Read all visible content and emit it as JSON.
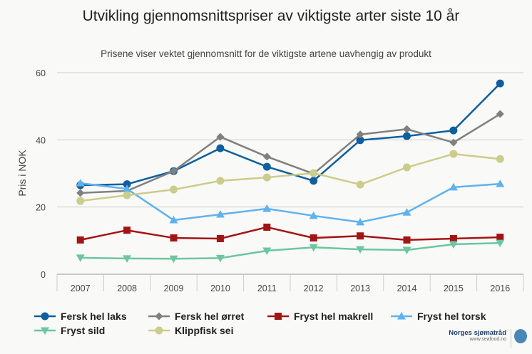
{
  "chart_data": {
    "type": "line",
    "title": "Utvikling gjennomsnittspriser av viktigste arter siste 10 år",
    "subtitle": "Prisene viser vektet gjennomsnitt for de viktigste artene uavhengig av produkt",
    "xlabel": "",
    "ylabel": "Pris i NOK",
    "ylim": [
      0,
      60
    ],
    "yticks": [
      "0",
      "20",
      "40",
      "60"
    ],
    "grid": true,
    "legend_position": "bottom",
    "categories": [
      "2007",
      "2008",
      "2009",
      "2010",
      "2011",
      "2012",
      "2013",
      "2014",
      "2015",
      "2016"
    ],
    "series": [
      {
        "name": "Fersk hel laks",
        "color": "#0f5f9e",
        "marker": "circle",
        "values": [
          26.5,
          26.8,
          30.7,
          37.5,
          32.0,
          27.8,
          39.9,
          41.1,
          42.8,
          56.8
        ]
      },
      {
        "name": "Fersk hel ørret",
        "color": "#808080",
        "marker": "diamond",
        "values": [
          24.2,
          24.8,
          30.7,
          40.9,
          35.0,
          29.9,
          41.6,
          43.2,
          39.2,
          47.7
        ]
      },
      {
        "name": "Fryst hel makrell",
        "color": "#a31414",
        "marker": "square",
        "values": [
          10.2,
          13.1,
          10.8,
          10.6,
          14.0,
          10.8,
          11.4,
          10.2,
          10.6,
          11.0
        ]
      },
      {
        "name": "Fryst hel torsk",
        "color": "#5fb2ee",
        "marker": "triangle-up",
        "values": [
          27.1,
          25.4,
          16.1,
          17.8,
          19.5,
          17.4,
          15.5,
          18.4,
          25.9,
          26.9
        ]
      },
      {
        "name": "Fryst sild",
        "color": "#6cc6a0",
        "marker": "triangle-down",
        "values": [
          4.9,
          4.7,
          4.6,
          4.8,
          7.0,
          8.0,
          7.4,
          7.2,
          8.9,
          9.3
        ]
      },
      {
        "name": "Klippfisk sei",
        "color": "#cccc8c",
        "marker": "circle",
        "values": [
          21.8,
          23.5,
          25.2,
          27.8,
          28.8,
          30.1,
          26.7,
          31.8,
          35.8,
          34.3
        ]
      }
    ]
  },
  "logo": {
    "name": "Norges sjømatråd",
    "url": "www.seafood.no",
    "badge": "NORGE"
  }
}
